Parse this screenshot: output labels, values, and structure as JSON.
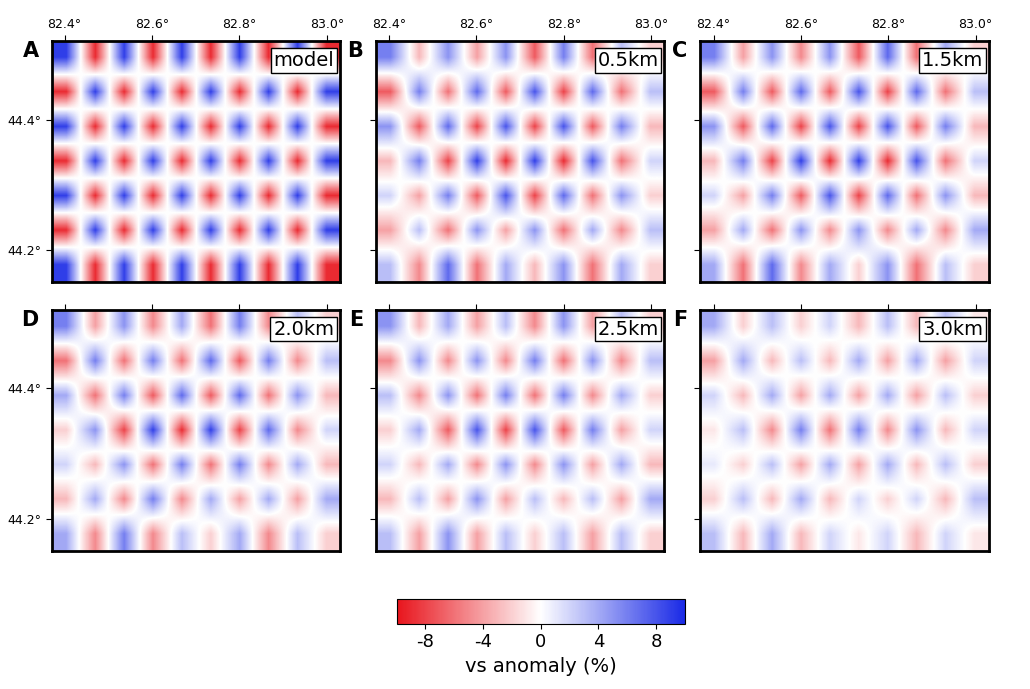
{
  "chart_data": [
    {
      "type": "heatmap",
      "panel": "A",
      "title": "model",
      "xlim": [
        82.37,
        83.03
      ],
      "ylim": [
        44.15,
        44.52
      ],
      "xticks": [
        {
          "value": 82.4,
          "label": "82.4°"
        },
        {
          "value": 82.6,
          "label": "82.6°"
        },
        {
          "value": 82.8,
          "label": "82.8°"
        },
        {
          "value": 83.0,
          "label": "83.0°"
        }
      ],
      "yticks": [
        {
          "value": 44.2,
          "label": "44.2°"
        },
        {
          "value": 44.4,
          "label": "44.4°"
        }
      ],
      "colorbar": {
        "range": [
          -10,
          10
        ],
        "ticks": [
          -8,
          -4,
          0,
          4,
          8
        ],
        "label": "vs anomaly (%)"
      },
      "cells": [
        [
          9,
          -9,
          9,
          -9,
          9,
          -9,
          9,
          -9,
          9,
          -9
        ],
        [
          -9,
          9,
          -9,
          9,
          -9,
          9,
          -9,
          9,
          -9,
          9
        ],
        [
          9,
          -9,
          9,
          -9,
          9,
          -9,
          9,
          -9,
          9,
          -9
        ],
        [
          -9,
          9,
          -9,
          9,
          -9,
          9,
          -9,
          9,
          -9,
          9
        ],
        [
          9,
          -9,
          9,
          -9,
          9,
          -9,
          9,
          -9,
          9,
          -9
        ],
        [
          -9,
          9,
          -9,
          9,
          -9,
          9,
          -9,
          9,
          -9,
          9
        ],
        [
          9,
          -9,
          9,
          -9,
          9,
          -9,
          9,
          -9,
          9,
          -9
        ]
      ]
    },
    {
      "type": "heatmap",
      "panel": "B",
      "title": "0.5km",
      "tick_labels": "x",
      "xlim": [
        82.37,
        83.03
      ],
      "ylim": [
        44.15,
        44.52
      ],
      "xticks": [
        {
          "value": 82.4,
          "label": "82.4°"
        },
        {
          "value": 82.6,
          "label": "82.6°"
        },
        {
          "value": 82.8,
          "label": "82.8°"
        },
        {
          "value": 83.0,
          "label": "83.0°"
        }
      ],
      "yticks": [
        {
          "value": 44.2,
          "label": "44.2°"
        },
        {
          "value": 44.4,
          "label": "44.4°"
        }
      ],
      "colorbar": {
        "range": [
          -10,
          10
        ],
        "ticks": [
          -8,
          -4,
          0,
          4,
          8
        ],
        "label": "vs anomaly (%)"
      },
      "cells": [
        [
          6,
          -3,
          5,
          -4,
          5,
          -7,
          6,
          -6,
          3,
          -2
        ],
        [
          -7,
          6,
          -6,
          7,
          -7,
          8,
          -8,
          7,
          -6,
          3
        ],
        [
          5,
          -7,
          7,
          -8,
          8,
          -8,
          8,
          -7,
          6,
          -3
        ],
        [
          -3,
          6,
          -8,
          9,
          -9,
          9,
          -9,
          8,
          -6,
          2
        ],
        [
          2,
          -4,
          6,
          -7,
          8,
          -8,
          7,
          -6,
          5,
          -2
        ],
        [
          -4,
          3,
          -6,
          5,
          -4,
          5,
          -6,
          4,
          -5,
          3
        ],
        [
          3,
          -5,
          7,
          -6,
          4,
          -3,
          5,
          -6,
          4,
          -2
        ]
      ]
    },
    {
      "type": "heatmap",
      "panel": "C",
      "title": "1.5km",
      "tick_labels": "x",
      "xlim": [
        82.37,
        83.03
      ],
      "ylim": [
        44.15,
        44.52
      ],
      "xticks": [
        {
          "value": 82.4,
          "label": "82.4°"
        },
        {
          "value": 82.6,
          "label": "82.6°"
        },
        {
          "value": 82.8,
          "label": "82.8°"
        },
        {
          "value": 83.0,
          "label": "83.0°"
        }
      ],
      "yticks": [
        {
          "value": 44.2,
          "label": "44.2°"
        },
        {
          "value": 44.4,
          "label": "44.4°"
        }
      ],
      "colorbar": {
        "range": [
          -10,
          10
        ],
        "ticks": [
          -8,
          -4,
          0,
          4,
          8
        ],
        "label": "vs anomaly (%)"
      },
      "cells": [
        [
          6,
          -4,
          5,
          -5,
          5,
          -7,
          7,
          -6,
          4,
          -2
        ],
        [
          -7,
          6,
          -7,
          7,
          -7,
          8,
          -8,
          7,
          -6,
          3
        ],
        [
          5,
          -7,
          7,
          -8,
          8,
          -8,
          8,
          -7,
          6,
          -3
        ],
        [
          -3,
          6,
          -8,
          9,
          -9,
          9,
          -9,
          8,
          -6,
          2
        ],
        [
          2,
          -4,
          6,
          -7,
          8,
          -8,
          7,
          -6,
          5,
          -3
        ],
        [
          -4,
          4,
          -6,
          5,
          -5,
          5,
          -5,
          4,
          -5,
          4
        ],
        [
          4,
          -6,
          7,
          -5,
          4,
          -2,
          5,
          -6,
          3,
          -2
        ]
      ]
    },
    {
      "type": "heatmap",
      "panel": "D",
      "title": "2.0km",
      "tick_labels": "y",
      "xlim": [
        82.37,
        83.03
      ],
      "ylim": [
        44.15,
        44.52
      ],
      "xticks": [
        {
          "value": 82.4,
          "label": "82.4°"
        },
        {
          "value": 82.6,
          "label": "82.6°"
        },
        {
          "value": 82.8,
          "label": "82.8°"
        },
        {
          "value": 83.0,
          "label": "83.0°"
        }
      ],
      "yticks": [
        {
          "value": 44.2,
          "label": "44.2°"
        },
        {
          "value": 44.4,
          "label": "44.4°"
        }
      ],
      "colorbar": {
        "range": [
          -10,
          10
        ],
        "ticks": [
          -8,
          -4,
          0,
          4,
          8
        ],
        "label": "vs anomaly (%)"
      },
      "cells": [
        [
          6,
          -4,
          5,
          -5,
          4,
          -6,
          6,
          -5,
          3,
          -2
        ],
        [
          -6,
          6,
          -6,
          6,
          -6,
          7,
          -7,
          6,
          -5,
          3
        ],
        [
          4,
          -6,
          6,
          -7,
          7,
          -7,
          7,
          -6,
          5,
          -3
        ],
        [
          -2,
          5,
          -8,
          9,
          -9,
          9,
          -8,
          7,
          -5,
          2
        ],
        [
          2,
          -3,
          5,
          -6,
          6,
          -6,
          6,
          -5,
          4,
          -3
        ],
        [
          -3,
          4,
          -5,
          6,
          -5,
          4,
          -4,
          4,
          -4,
          4
        ],
        [
          4,
          -5,
          6,
          -5,
          3,
          -2,
          4,
          -5,
          3,
          -2
        ]
      ]
    },
    {
      "type": "heatmap",
      "panel": "E",
      "title": "2.5km",
      "tick_labels": false,
      "xlim": [
        82.37,
        83.03
      ],
      "ylim": [
        44.15,
        44.52
      ],
      "xticks": [
        {
          "value": 82.4,
          "label": "82.4°"
        },
        {
          "value": 82.6,
          "label": "82.6°"
        },
        {
          "value": 82.8,
          "label": "82.8°"
        },
        {
          "value": 83.0,
          "label": "83.0°"
        }
      ],
      "yticks": [
        {
          "value": 44.2,
          "label": "44.2°"
        },
        {
          "value": 44.4,
          "label": "44.4°"
        }
      ],
      "colorbar": {
        "range": [
          -10,
          10
        ],
        "ticks": [
          -8,
          -4,
          0,
          4,
          8
        ],
        "label": "vs anomaly (%)"
      },
      "cells": [
        [
          5,
          -3,
          4,
          -4,
          3,
          -5,
          5,
          -4,
          3,
          -2
        ],
        [
          -5,
          5,
          -5,
          5,
          -5,
          6,
          -6,
          5,
          -5,
          3
        ],
        [
          3,
          -5,
          5,
          -6,
          6,
          -6,
          6,
          -5,
          4,
          -2
        ],
        [
          -2,
          4,
          -7,
          8,
          -8,
          8,
          -7,
          6,
          -4,
          2
        ],
        [
          2,
          -3,
          4,
          -5,
          5,
          -5,
          5,
          -4,
          4,
          -3
        ],
        [
          -3,
          3,
          -4,
          5,
          -4,
          3,
          -3,
          3,
          -4,
          4
        ],
        [
          3,
          -4,
          5,
          -4,
          3,
          -2,
          3,
          -4,
          3,
          -2
        ]
      ]
    },
    {
      "type": "heatmap",
      "panel": "F",
      "title": "3.0km",
      "tick_labels": false,
      "xlim": [
        82.37,
        83.03
      ],
      "ylim": [
        44.15,
        44.52
      ],
      "xticks": [
        {
          "value": 82.4,
          "label": "82.4°"
        },
        {
          "value": 82.6,
          "label": "82.6°"
        },
        {
          "value": 82.8,
          "label": "82.8°"
        },
        {
          "value": 83.0,
          "label": "83.0°"
        }
      ],
      "yticks": [
        {
          "value": 44.2,
          "label": "44.2°"
        },
        {
          "value": 44.4,
          "label": "44.4°"
        }
      ],
      "colorbar": {
        "range": [
          -10,
          10
        ],
        "ticks": [
          -8,
          -4,
          0,
          4,
          8
        ],
        "label": "vs anomaly (%)"
      },
      "cells": [
        [
          4,
          -2,
          3,
          -2,
          2,
          -3,
          3,
          -3,
          3,
          -1
        ],
        [
          -4,
          4,
          -3,
          3,
          -3,
          4,
          -4,
          4,
          -4,
          2
        ],
        [
          2,
          -3,
          4,
          -4,
          4,
          -4,
          4,
          -4,
          3,
          -2
        ],
        [
          -1,
          3,
          -5,
          6,
          -6,
          6,
          -5,
          5,
          -3,
          2
        ],
        [
          1,
          -2,
          3,
          -4,
          4,
          -4,
          4,
          -3,
          3,
          -2
        ],
        [
          -2,
          3,
          -3,
          4,
          -3,
          2,
          -2,
          2,
          -3,
          3
        ],
        [
          3,
          -3,
          4,
          -3,
          2,
          -1,
          2,
          -3,
          2,
          -1
        ]
      ]
    }
  ]
}
